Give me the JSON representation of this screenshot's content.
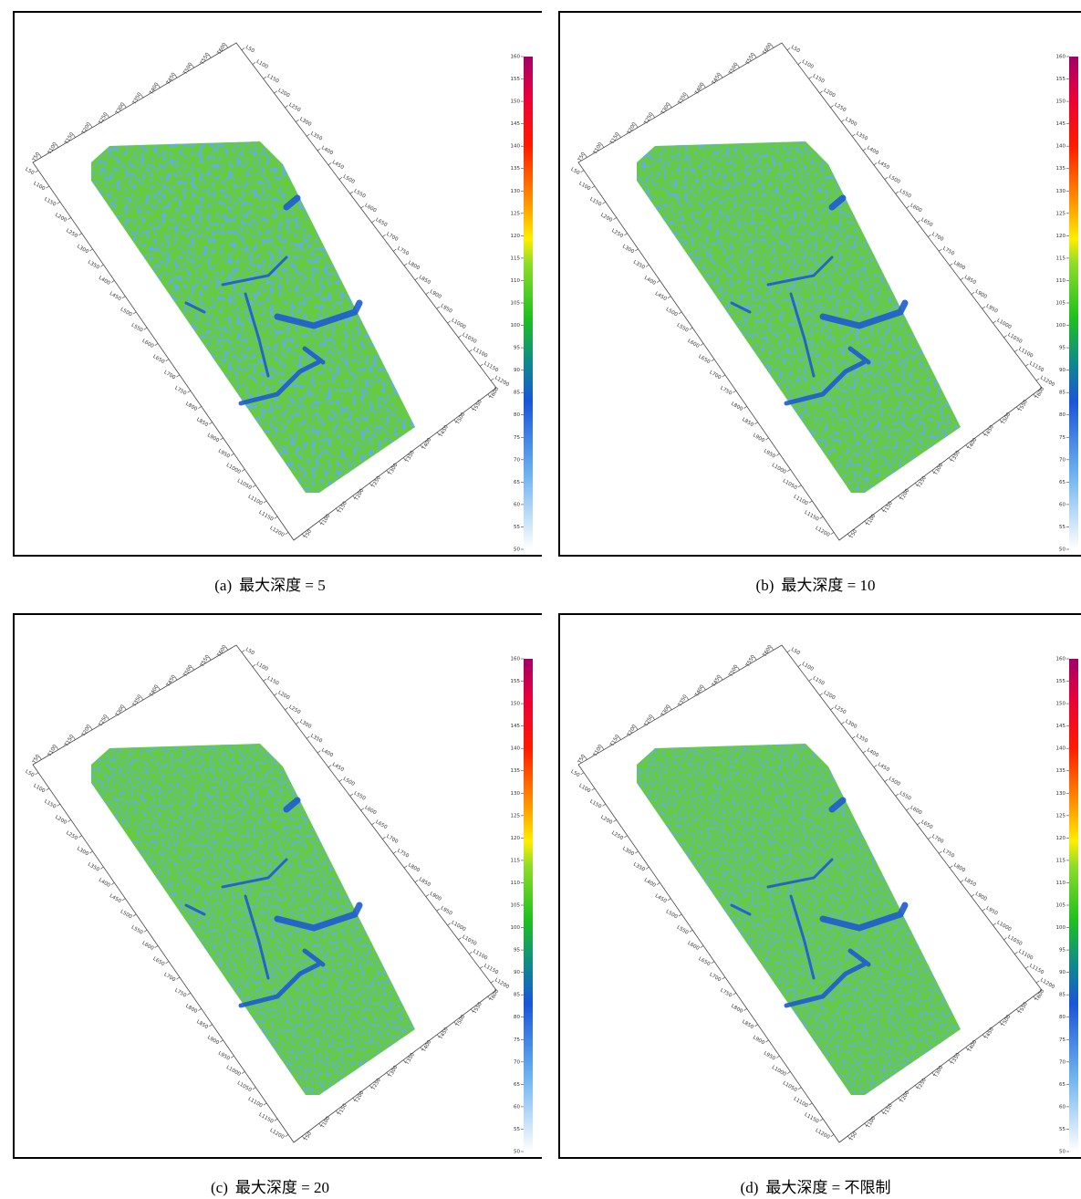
{
  "panels": [
    {
      "label": "(a)",
      "caption": "最大深度 = 5"
    },
    {
      "label": "(b)",
      "caption": "最大深度 = 10"
    },
    {
      "label": "(c)",
      "caption": "最大深度 = 20"
    },
    {
      "label": "(d)",
      "caption": "最大深度 = 不限制"
    }
  ],
  "colorbar": {
    "ticks": [
      50,
      55,
      60,
      65,
      70,
      75,
      80,
      85,
      90,
      95,
      100,
      105,
      110,
      115,
      120,
      125,
      130,
      135,
      140,
      145,
      150,
      155,
      160
    ],
    "lim": [
      50,
      160
    ]
  },
  "crossline_labels": [
    "T50",
    "T100",
    "T150",
    "T200",
    "T250",
    "T300",
    "T350",
    "T400",
    "T450",
    "T500",
    "T550",
    "T600"
  ],
  "inline_labels": [
    "L50",
    "L100",
    "L150",
    "L200",
    "L250",
    "L300",
    "L350",
    "L400",
    "L450",
    "L500",
    "L550",
    "L600",
    "L650",
    "L700",
    "L750",
    "L800",
    "L850",
    "L900",
    "L950",
    "L1000",
    "L1050",
    "L1100",
    "L1150",
    "L1200"
  ]
}
